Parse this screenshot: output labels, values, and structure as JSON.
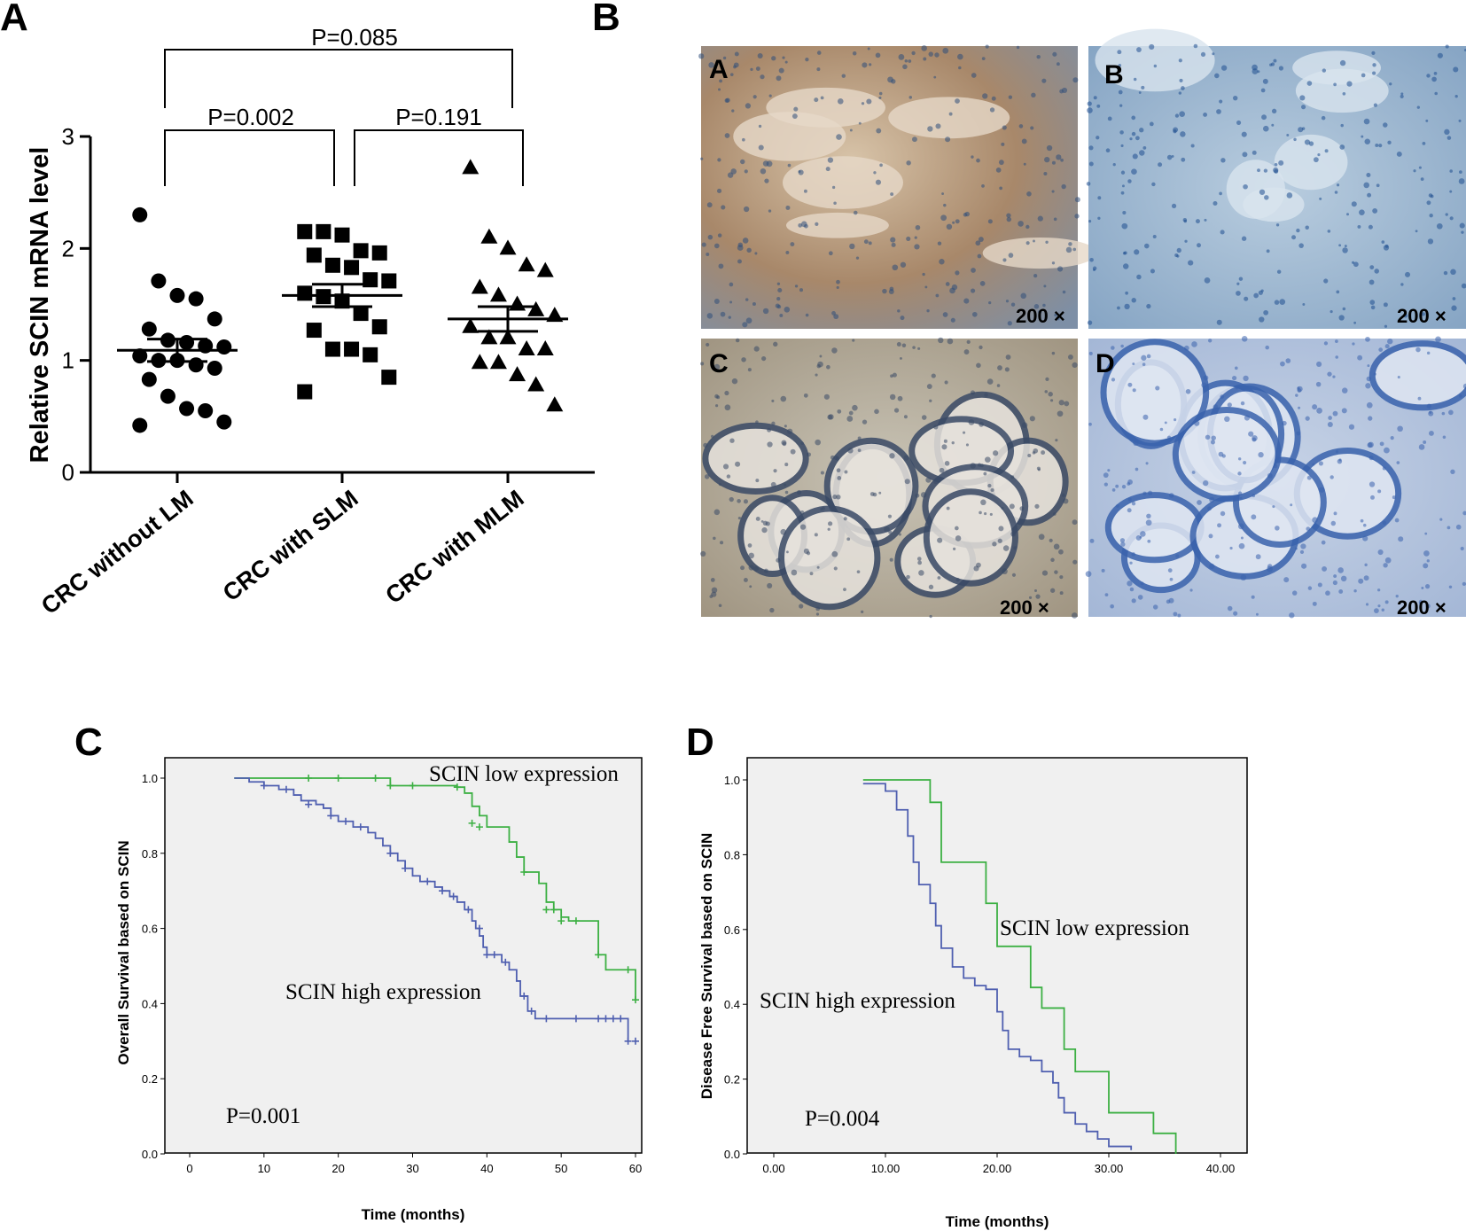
{
  "panel_letters": {
    "a": "A",
    "b": "B",
    "c": "C",
    "d": "D"
  },
  "chart_data": [
    {
      "type": "scatter",
      "panel": "A",
      "ylabel": "Relative SCIN mRNA level",
      "ylim": [
        0,
        3
      ],
      "yticks": [
        "0",
        "1",
        "2",
        "3"
      ],
      "categories": [
        "CRC without LM",
        "CRC with SLM",
        "CRC with MLM"
      ],
      "groups": [
        {
          "category": "CRC without LM",
          "marker": "circle",
          "values": [
            2.3,
            1.71,
            1.58,
            1.55,
            1.37,
            1.28,
            1.18,
            1.16,
            1.13,
            1.12,
            1.04,
            1.0,
            1.0,
            0.96,
            0.93,
            0.83,
            0.68,
            0.57,
            0.55,
            0.45,
            0.42
          ],
          "mean": 1.09,
          "sem": 0.1
        },
        {
          "category": "CRC with SLM",
          "marker": "square",
          "values": [
            2.15,
            2.15,
            2.12,
            1.98,
            1.96,
            1.94,
            1.85,
            1.83,
            1.72,
            1.71,
            1.6,
            1.57,
            1.53,
            1.42,
            1.3,
            1.27,
            1.1,
            1.1,
            1.05,
            0.85,
            0.72
          ],
          "mean": 1.58,
          "sem": 0.1
        },
        {
          "category": "CRC with MLM",
          "marker": "triangle",
          "values": [
            2.72,
            2.1,
            2.0,
            1.85,
            1.8,
            1.65,
            1.58,
            1.5,
            1.45,
            1.4,
            1.3,
            1.2,
            1.2,
            1.1,
            1.1,
            0.98,
            0.98,
            0.87,
            0.78,
            0.6
          ],
          "mean": 1.37,
          "sem": 0.11
        }
      ],
      "comparisons": [
        {
          "from": "CRC without LM",
          "to": "CRC with SLM",
          "label": "P=0.002"
        },
        {
          "from": "CRC with SLM",
          "to": "CRC with MLM",
          "label": "P=0.191"
        },
        {
          "from": "CRC without LM",
          "to": "CRC with MLM",
          "label": "P=0.085"
        }
      ]
    },
    {
      "type": "line",
      "panel": "C",
      "xlabel": "Time (months)",
      "ylabel": "Overall Survival based on SCIN",
      "xlim": [
        0,
        60
      ],
      "ylim": [
        0,
        1
      ],
      "xticks": [
        "0",
        "10",
        "20",
        "30",
        "40",
        "50",
        "60"
      ],
      "yticks": [
        "0.0",
        "0.2",
        "0.4",
        "0.6",
        "0.8",
        "1.0"
      ],
      "p_value": "P=0.001",
      "series": [
        {
          "name": "SCIN low expression",
          "color": "#3cb043",
          "steps": [
            [
              6,
              1.0
            ],
            [
              27,
              0.98
            ],
            [
              36,
              0.976
            ],
            [
              37,
              0.96
            ],
            [
              38,
              0.925
            ],
            [
              39,
              0.9
            ],
            [
              40,
              0.87
            ],
            [
              43,
              0.83
            ],
            [
              44,
              0.79
            ],
            [
              45,
              0.75
            ],
            [
              47,
              0.72
            ],
            [
              48,
              0.67
            ],
            [
              49,
              0.65
            ],
            [
              50,
              0.63
            ],
            [
              51,
              0.62
            ],
            [
              55,
              0.53
            ],
            [
              56,
              0.49
            ],
            [
              60,
              0.41
            ]
          ],
          "censored": [
            [
              16,
              1.0
            ],
            [
              20,
              1.0
            ],
            [
              25,
              1.0
            ],
            [
              27,
              0.98
            ],
            [
              30,
              0.98
            ],
            [
              36,
              0.976
            ],
            [
              38,
              0.88
            ],
            [
              39,
              0.87
            ],
            [
              45,
              0.75
            ],
            [
              48,
              0.65
            ],
            [
              49,
              0.65
            ],
            [
              50,
              0.62
            ],
            [
              52,
              0.62
            ],
            [
              55,
              0.53
            ],
            [
              59,
              0.49
            ],
            [
              60,
              0.41
            ]
          ]
        },
        {
          "name": "SCIN high expression",
          "color": "#4f5fb0",
          "steps": [
            [
              6,
              1.0
            ],
            [
              8,
              0.99
            ],
            [
              10,
              0.98
            ],
            [
              12,
              0.97
            ],
            [
              14,
              0.955
            ],
            [
              15,
              0.94
            ],
            [
              17,
              0.93
            ],
            [
              18,
              0.92
            ],
            [
              19,
              0.9
            ],
            [
              20,
              0.885
            ],
            [
              22,
              0.87
            ],
            [
              24,
              0.855
            ],
            [
              25,
              0.84
            ],
            [
              26,
              0.82
            ],
            [
              27,
              0.8
            ],
            [
              28,
              0.78
            ],
            [
              29,
              0.76
            ],
            [
              30,
              0.74
            ],
            [
              31,
              0.725
            ],
            [
              33,
              0.71
            ],
            [
              34,
              0.7
            ],
            [
              35,
              0.685
            ],
            [
              36,
              0.67
            ],
            [
              37,
              0.65
            ],
            [
              38,
              0.62
            ],
            [
              38.5,
              0.6
            ],
            [
              39,
              0.58
            ],
            [
              39.5,
              0.55
            ],
            [
              40,
              0.53
            ],
            [
              42,
              0.51
            ],
            [
              43,
              0.49
            ],
            [
              44,
              0.46
            ],
            [
              44.5,
              0.42
            ],
            [
              45.5,
              0.38
            ],
            [
              46.5,
              0.36
            ],
            [
              59,
              0.3
            ]
          ],
          "censored": [
            [
              10,
              0.98
            ],
            [
              13,
              0.97
            ],
            [
              16,
              0.93
            ],
            [
              19,
              0.9
            ],
            [
              21,
              0.885
            ],
            [
              23,
              0.87
            ],
            [
              27,
              0.8
            ],
            [
              29,
              0.76
            ],
            [
              32,
              0.725
            ],
            [
              34,
              0.7
            ],
            [
              35.5,
              0.685
            ],
            [
              37.5,
              0.65
            ],
            [
              39,
              0.6
            ],
            [
              40,
              0.53
            ],
            [
              41,
              0.53
            ],
            [
              42.5,
              0.51
            ],
            [
              45,
              0.42
            ],
            [
              46,
              0.38
            ],
            [
              48,
              0.36
            ],
            [
              52,
              0.36
            ],
            [
              55,
              0.36
            ],
            [
              56,
              0.36
            ],
            [
              57,
              0.36
            ],
            [
              58,
              0.36
            ],
            [
              59,
              0.3
            ],
            [
              60,
              0.3
            ]
          ]
        }
      ]
    },
    {
      "type": "line",
      "panel": "D",
      "xlabel": "Time (months)",
      "ylabel": "Disease Free Survival based on SCIN",
      "xlim": [
        0,
        40
      ],
      "ylim": [
        0,
        1
      ],
      "xticks": [
        "0.00",
        "10.00",
        "20.00",
        "30.00",
        "40.00"
      ],
      "yticks": [
        "0.0",
        "0.2",
        "0.4",
        "0.6",
        "0.8",
        "1.0"
      ],
      "p_value": "P=0.004",
      "series": [
        {
          "name": "SCIN low expression",
          "color": "#3cb043",
          "steps": [
            [
              8,
              1.0
            ],
            [
              14,
              0.94
            ],
            [
              15,
              0.78
            ],
            [
              19,
              0.67
            ],
            [
              20,
              0.555
            ],
            [
              23,
              0.445
            ],
            [
              24,
              0.39
            ],
            [
              26,
              0.28
            ],
            [
              27,
              0.22
            ],
            [
              30,
              0.11
            ],
            [
              34,
              0.055
            ],
            [
              36,
              0.0
            ]
          ]
        },
        {
          "name": "SCIN high expression",
          "color": "#4f5fb0",
          "steps": [
            [
              8,
              0.99
            ],
            [
              10,
              0.97
            ],
            [
              11,
              0.92
            ],
            [
              12,
              0.85
            ],
            [
              12.5,
              0.78
            ],
            [
              13,
              0.72
            ],
            [
              14,
              0.67
            ],
            [
              14.5,
              0.61
            ],
            [
              15,
              0.55
            ],
            [
              16,
              0.5
            ],
            [
              17,
              0.47
            ],
            [
              18,
              0.45
            ],
            [
              19,
              0.44
            ],
            [
              20,
              0.38
            ],
            [
              20.5,
              0.33
            ],
            [
              21,
              0.28
            ],
            [
              22,
              0.26
            ],
            [
              23,
              0.25
            ],
            [
              24,
              0.22
            ],
            [
              25,
              0.19
            ],
            [
              25.5,
              0.15
            ],
            [
              26,
              0.11
            ],
            [
              27,
              0.08
            ],
            [
              28,
              0.06
            ],
            [
              29,
              0.04
            ],
            [
              30,
              0.02
            ],
            [
              32,
              0.01
            ]
          ]
        }
      ]
    }
  ],
  "ihc_panel": {
    "letter": "B",
    "tiles": [
      {
        "label": "A",
        "magnification": "200 ×"
      },
      {
        "label": "B",
        "magnification": "200 ×"
      },
      {
        "label": "C",
        "magnification": "200 ×"
      },
      {
        "label": "D",
        "magnification": "200 ×"
      }
    ]
  }
}
